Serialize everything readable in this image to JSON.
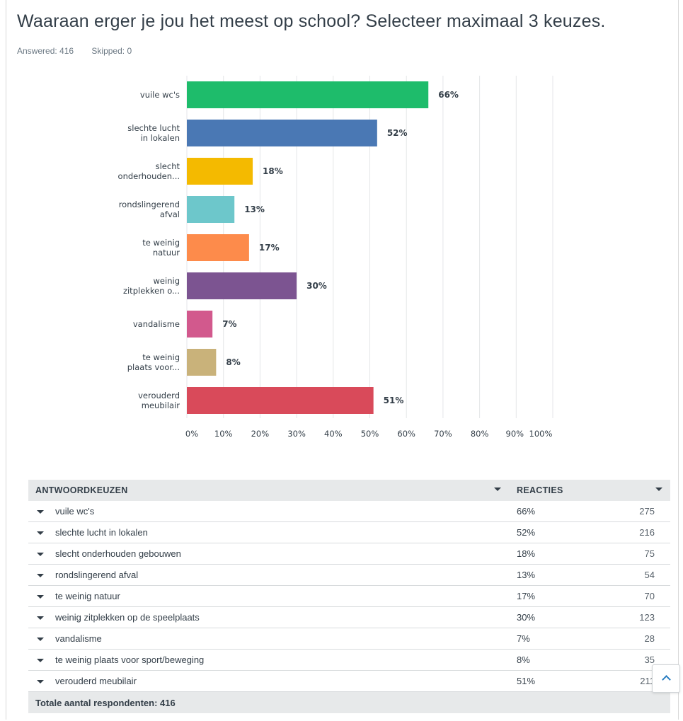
{
  "question": {
    "title": "Waaraan erger je jou het meest op school? Selecteer maximaal 3 keuzes.",
    "answered": "Answered: 416",
    "skipped": "Skipped: 0"
  },
  "chart_data": {
    "type": "bar",
    "orientation": "horizontal",
    "categories": [
      [
        "vuile wc's"
      ],
      [
        "slechte lucht",
        "in lokalen"
      ],
      [
        "slecht",
        "onderhouden..."
      ],
      [
        "rondslingerend",
        "afval"
      ],
      [
        "te weinig",
        "natuur"
      ],
      [
        "weinig",
        "zitplekken o..."
      ],
      [
        "vandalisme"
      ],
      [
        "te weinig",
        "plaats voor..."
      ],
      [
        "verouderd",
        "meubilair"
      ]
    ],
    "values": [
      66,
      52,
      18,
      13,
      17,
      30,
      7,
      8,
      51
    ],
    "value_labels": [
      "66%",
      "52%",
      "18%",
      "13%",
      "17%",
      "30%",
      "7%",
      "8%",
      "51%"
    ],
    "colors": [
      "#1ebc6b",
      "#4a78b4",
      "#f4ba00",
      "#6dc7cb",
      "#fd8b4b",
      "#7c5491",
      "#d2598d",
      "#c9b27a",
      "#d94a5a"
    ],
    "xticks": [
      "0%",
      "10%",
      "20%",
      "30%",
      "40%",
      "50%",
      "60%",
      "70%",
      "80%",
      "90%",
      "100%"
    ],
    "xlim": [
      0,
      100
    ],
    "grid": true
  },
  "table": {
    "col_answer": "ANTWOORDKEUZEN",
    "col_responses": "REACTIES",
    "rows": [
      {
        "label": "vuile wc's",
        "pct": "66%",
        "count": "275"
      },
      {
        "label": "slechte lucht in lokalen",
        "pct": "52%",
        "count": "216"
      },
      {
        "label": "slecht onderhouden gebouwen",
        "pct": "18%",
        "count": "75"
      },
      {
        "label": "rondslingerend afval",
        "pct": "13%",
        "count": "54"
      },
      {
        "label": "te weinig natuur",
        "pct": "17%",
        "count": "70"
      },
      {
        "label": "weinig zitplekken op de speelplaats",
        "pct": "30%",
        "count": "123"
      },
      {
        "label": "vandalisme",
        "pct": "7%",
        "count": "28"
      },
      {
        "label": "te weinig plaats voor sport/beweging",
        "pct": "8%",
        "count": "35"
      },
      {
        "label": "verouderd meubilair",
        "pct": "51%",
        "count": "211"
      }
    ],
    "total": "Totale aantal respondenten: 416"
  },
  "icons": {
    "sort": "caret-down-icon",
    "row_expand": "caret-down-icon",
    "scroll_top": "chevron-up-icon"
  },
  "colors": {
    "grid": "#e4e6e8",
    "table_header_bg": "#e7e9ea",
    "accent": "#2b7ec1"
  }
}
